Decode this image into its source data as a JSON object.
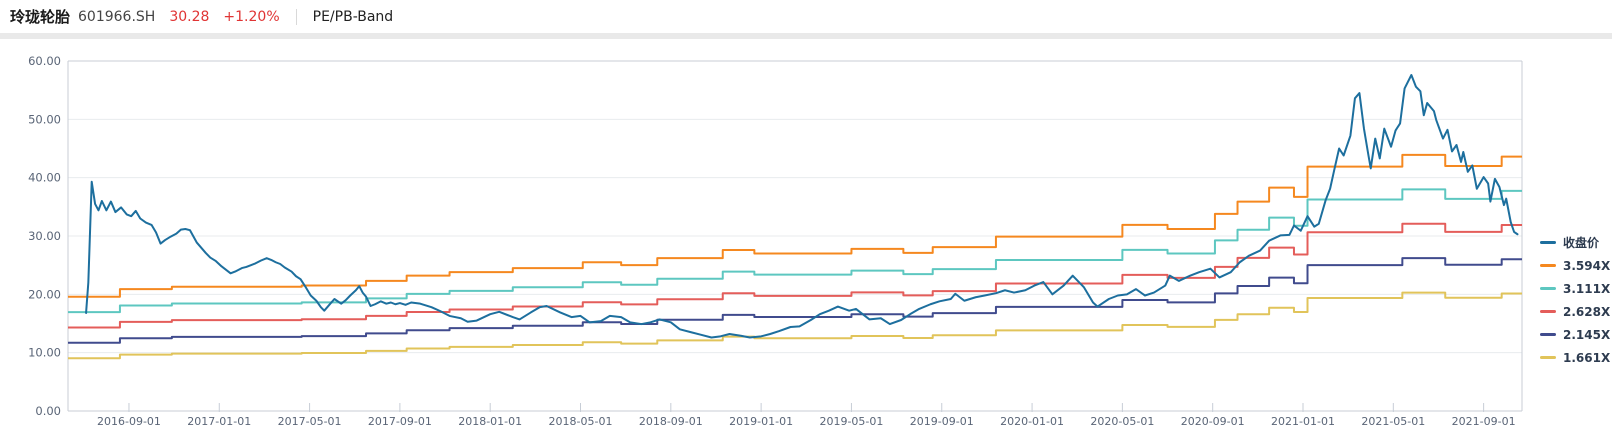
{
  "header": {
    "stock_name": "玲珑轮胎",
    "stock_code": "601966.SH",
    "price": "30.28",
    "change_percent": "+1.20%",
    "chart_type_label": "PE/PB-Band",
    "price_color": "#e03434"
  },
  "chart_data": {
    "type": "line",
    "title": "PE/PB-Band",
    "grid": true,
    "legend_position": "right",
    "ylim": [
      0,
      60
    ],
    "y_tick_step": 10,
    "y_ticks": [
      "0.00",
      "10.00",
      "20.00",
      "30.00",
      "40.00",
      "50.00",
      "60.00"
    ],
    "x_domain_months": [
      -0.7,
      63.7
    ],
    "x_ticks": [
      {
        "m": 2,
        "label": "2016-09-01"
      },
      {
        "m": 6,
        "label": "2017-01-01"
      },
      {
        "m": 10,
        "label": "2017-05-01"
      },
      {
        "m": 14,
        "label": "2017-09-01"
      },
      {
        "m": 18,
        "label": "2018-01-01"
      },
      {
        "m": 22,
        "label": "2018-05-01"
      },
      {
        "m": 26,
        "label": "2018-09-01"
      },
      {
        "m": 30,
        "label": "2019-01-01"
      },
      {
        "m": 34,
        "label": "2019-05-01"
      },
      {
        "m": 38,
        "label": "2019-09-01"
      },
      {
        "m": 42,
        "label": "2020-01-01"
      },
      {
        "m": 46,
        "label": "2020-05-01"
      },
      {
        "m": 50,
        "label": "2020-09-01"
      },
      {
        "m": 54,
        "label": "2021-01-01"
      },
      {
        "m": 58,
        "label": "2021-05-01"
      },
      {
        "m": 62,
        "label": "2021-09-01"
      }
    ],
    "close_series": {
      "name": "收盘价",
      "color": "#1d6f9e",
      "points": [
        [
          0.1,
          16.8
        ],
        [
          0.2,
          22.0
        ],
        [
          0.35,
          39.3
        ],
        [
          0.5,
          35.5
        ],
        [
          0.65,
          34.4
        ],
        [
          0.8,
          36.0
        ],
        [
          1.0,
          34.4
        ],
        [
          1.2,
          35.9
        ],
        [
          1.4,
          34.1
        ],
        [
          1.65,
          34.9
        ],
        [
          1.9,
          33.7
        ],
        [
          2.1,
          33.4
        ],
        [
          2.3,
          34.3
        ],
        [
          2.5,
          33.0
        ],
        [
          2.75,
          32.3
        ],
        [
          3.0,
          31.9
        ],
        [
          3.2,
          30.6
        ],
        [
          3.4,
          28.7
        ],
        [
          3.6,
          29.3
        ],
        [
          3.85,
          29.9
        ],
        [
          4.1,
          30.4
        ],
        [
          4.3,
          31.1
        ],
        [
          4.5,
          31.2
        ],
        [
          4.7,
          31.0
        ],
        [
          5.0,
          28.9
        ],
        [
          5.2,
          28.0
        ],
        [
          5.4,
          27.1
        ],
        [
          5.6,
          26.3
        ],
        [
          5.85,
          25.7
        ],
        [
          6.1,
          24.8
        ],
        [
          6.3,
          24.2
        ],
        [
          6.5,
          23.6
        ],
        [
          6.7,
          23.9
        ],
        [
          7.0,
          24.5
        ],
        [
          7.2,
          24.7
        ],
        [
          7.4,
          25.0
        ],
        [
          7.6,
          25.3
        ],
        [
          7.85,
          25.8
        ],
        [
          8.1,
          26.2
        ],
        [
          8.3,
          25.9
        ],
        [
          8.5,
          25.5
        ],
        [
          8.7,
          25.2
        ],
        [
          8.9,
          24.6
        ],
        [
          9.2,
          23.9
        ],
        [
          9.4,
          23.1
        ],
        [
          9.6,
          22.6
        ],
        [
          9.8,
          21.4
        ],
        [
          10.05,
          19.8
        ],
        [
          10.3,
          18.9
        ],
        [
          10.5,
          17.8
        ],
        [
          10.65,
          17.2
        ],
        [
          10.85,
          18.1
        ],
        [
          11.1,
          19.2
        ],
        [
          11.4,
          18.4
        ],
        [
          11.6,
          19.0
        ],
        [
          11.8,
          19.8
        ],
        [
          12.05,
          20.7
        ],
        [
          12.2,
          21.4
        ],
        [
          12.35,
          20.3
        ],
        [
          12.5,
          19.6
        ],
        [
          12.7,
          18.0
        ],
        [
          12.9,
          18.3
        ],
        [
          13.15,
          18.8
        ],
        [
          13.4,
          18.4
        ],
        [
          13.6,
          18.6
        ],
        [
          13.8,
          18.3
        ],
        [
          14.0,
          18.5
        ],
        [
          14.25,
          18.2
        ],
        [
          14.5,
          18.6
        ],
        [
          14.9,
          18.4
        ],
        [
          15.4,
          17.8
        ],
        [
          15.8,
          17.1
        ],
        [
          16.2,
          16.3
        ],
        [
          16.7,
          15.9
        ],
        [
          17.0,
          15.3
        ],
        [
          17.4,
          15.5
        ],
        [
          18.0,
          16.6
        ],
        [
          18.4,
          17.0
        ],
        [
          19.0,
          16.1
        ],
        [
          19.3,
          15.7
        ],
        [
          19.8,
          16.9
        ],
        [
          20.2,
          17.8
        ],
        [
          20.5,
          18.0
        ],
        [
          21.1,
          16.9
        ],
        [
          21.6,
          16.1
        ],
        [
          22.0,
          16.3
        ],
        [
          22.4,
          15.2
        ],
        [
          22.9,
          15.4
        ],
        [
          23.3,
          16.3
        ],
        [
          23.8,
          16.1
        ],
        [
          24.2,
          15.2
        ],
        [
          24.7,
          14.9
        ],
        [
          25.1,
          15.2
        ],
        [
          25.5,
          15.7
        ],
        [
          26.0,
          15.2
        ],
        [
          26.4,
          14.0
        ],
        [
          26.9,
          13.5
        ],
        [
          27.3,
          13.1
        ],
        [
          27.8,
          12.6
        ],
        [
          28.2,
          12.8
        ],
        [
          28.6,
          13.2
        ],
        [
          29.1,
          12.9
        ],
        [
          29.5,
          12.6
        ],
        [
          30.0,
          12.8
        ],
        [
          30.4,
          13.2
        ],
        [
          30.8,
          13.7
        ],
        [
          31.3,
          14.4
        ],
        [
          31.7,
          14.5
        ],
        [
          32.2,
          15.6
        ],
        [
          32.6,
          16.6
        ],
        [
          33.0,
          17.2
        ],
        [
          33.4,
          17.9
        ],
        [
          33.9,
          17.2
        ],
        [
          34.2,
          17.5
        ],
        [
          34.8,
          15.7
        ],
        [
          35.3,
          15.9
        ],
        [
          35.7,
          14.9
        ],
        [
          36.2,
          15.6
        ],
        [
          36.6,
          16.6
        ],
        [
          37.0,
          17.5
        ],
        [
          37.5,
          18.3
        ],
        [
          37.9,
          18.8
        ],
        [
          38.4,
          19.2
        ],
        [
          38.6,
          20.1
        ],
        [
          39.0,
          18.9
        ],
        [
          39.5,
          19.5
        ],
        [
          39.9,
          19.8
        ],
        [
          40.4,
          20.2
        ],
        [
          40.8,
          20.7
        ],
        [
          41.2,
          20.3
        ],
        [
          41.7,
          20.7
        ],
        [
          42.1,
          21.5
        ],
        [
          42.5,
          22.1
        ],
        [
          42.9,
          20.0
        ],
        [
          43.4,
          21.5
        ],
        [
          43.8,
          23.2
        ],
        [
          44.3,
          21.2
        ],
        [
          44.7,
          18.6
        ],
        [
          44.9,
          17.9
        ],
        [
          45.4,
          19.2
        ],
        [
          45.8,
          19.8
        ],
        [
          46.2,
          20.0
        ],
        [
          46.6,
          20.9
        ],
        [
          47.0,
          19.8
        ],
        [
          47.4,
          20.3
        ],
        [
          47.9,
          21.5
        ],
        [
          48.1,
          23.2
        ],
        [
          48.5,
          22.3
        ],
        [
          49.0,
          23.2
        ],
        [
          49.4,
          23.8
        ],
        [
          49.9,
          24.4
        ],
        [
          50.3,
          22.9
        ],
        [
          50.8,
          23.8
        ],
        [
          51.2,
          25.5
        ],
        [
          51.6,
          26.6
        ],
        [
          52.1,
          27.5
        ],
        [
          52.5,
          29.2
        ],
        [
          53.0,
          30.1
        ],
        [
          53.4,
          30.2
        ],
        [
          53.6,
          31.8
        ],
        [
          53.9,
          30.9
        ],
        [
          54.2,
          33.4
        ],
        [
          54.5,
          31.6
        ],
        [
          54.7,
          32.1
        ],
        [
          55.0,
          36.1
        ],
        [
          55.2,
          38.1
        ],
        [
          55.4,
          41.6
        ],
        [
          55.6,
          45.0
        ],
        [
          55.8,
          43.8
        ],
        [
          56.1,
          47.2
        ],
        [
          56.3,
          53.6
        ],
        [
          56.5,
          54.5
        ],
        [
          56.7,
          48.4
        ],
        [
          56.9,
          43.8
        ],
        [
          57.0,
          41.6
        ],
        [
          57.2,
          46.7
        ],
        [
          57.4,
          43.3
        ],
        [
          57.6,
          48.4
        ],
        [
          57.9,
          45.3
        ],
        [
          58.1,
          48.1
        ],
        [
          58.3,
          49.3
        ],
        [
          58.5,
          55.3
        ],
        [
          58.8,
          57.6
        ],
        [
          59.0,
          55.6
        ],
        [
          59.2,
          54.8
        ],
        [
          59.35,
          50.7
        ],
        [
          59.5,
          52.8
        ],
        [
          59.8,
          51.4
        ],
        [
          59.9,
          49.9
        ],
        [
          60.2,
          46.7
        ],
        [
          60.4,
          48.2
        ],
        [
          60.6,
          44.5
        ],
        [
          60.8,
          45.6
        ],
        [
          61.0,
          42.7
        ],
        [
          61.1,
          44.4
        ],
        [
          61.3,
          41.0
        ],
        [
          61.5,
          42.1
        ],
        [
          61.7,
          38.1
        ],
        [
          62.0,
          40.1
        ],
        [
          62.2,
          39.0
        ],
        [
          62.3,
          35.9
        ],
        [
          62.5,
          39.8
        ],
        [
          62.7,
          38.4
        ],
        [
          62.9,
          35.3
        ],
        [
          63.0,
          36.4
        ],
        [
          63.2,
          32.4
        ],
        [
          63.35,
          30.7
        ],
        [
          63.5,
          30.3
        ]
      ]
    },
    "band_multiples": [
      {
        "name": "3.594X",
        "multiple": 3.594,
        "color": "#f5881f"
      },
      {
        "name": "3.111X",
        "multiple": 3.111,
        "color": "#5dc7c0"
      },
      {
        "name": "2.628X",
        "multiple": 2.628,
        "color": "#e45d5a"
      },
      {
        "name": "2.145X",
        "multiple": 2.145,
        "color": "#404b8d"
      },
      {
        "name": "1.661X",
        "multiple": 1.661,
        "color": "#e1c45a"
      }
    ],
    "bvps_steps": [
      [
        -0.7,
        5.45
      ],
      [
        1.6,
        5.816
      ],
      [
        3.9,
        5.925
      ],
      [
        9.65,
        5.985
      ],
      [
        12.5,
        6.205
      ],
      [
        14.3,
        6.455
      ],
      [
        16.2,
        6.622
      ],
      [
        19.0,
        6.817
      ],
      [
        22.1,
        7.095
      ],
      [
        23.8,
        6.956
      ],
      [
        25.4,
        7.29
      ],
      [
        28.3,
        7.679
      ],
      [
        29.7,
        7.512
      ],
      [
        34.0,
        7.735
      ],
      [
        36.3,
        7.54
      ],
      [
        37.6,
        7.818
      ],
      [
        40.4,
        8.319
      ],
      [
        46.0,
        8.876
      ],
      [
        48.0,
        8.681
      ],
      [
        50.1,
        9.405
      ],
      [
        51.1,
        9.989
      ],
      [
        52.5,
        10.657
      ],
      [
        53.6,
        10.211
      ],
      [
        54.2,
        11.658
      ],
      [
        58.4,
        12.215
      ],
      [
        60.3,
        11.686
      ],
      [
        62.8,
        12.132
      ]
    ]
  }
}
